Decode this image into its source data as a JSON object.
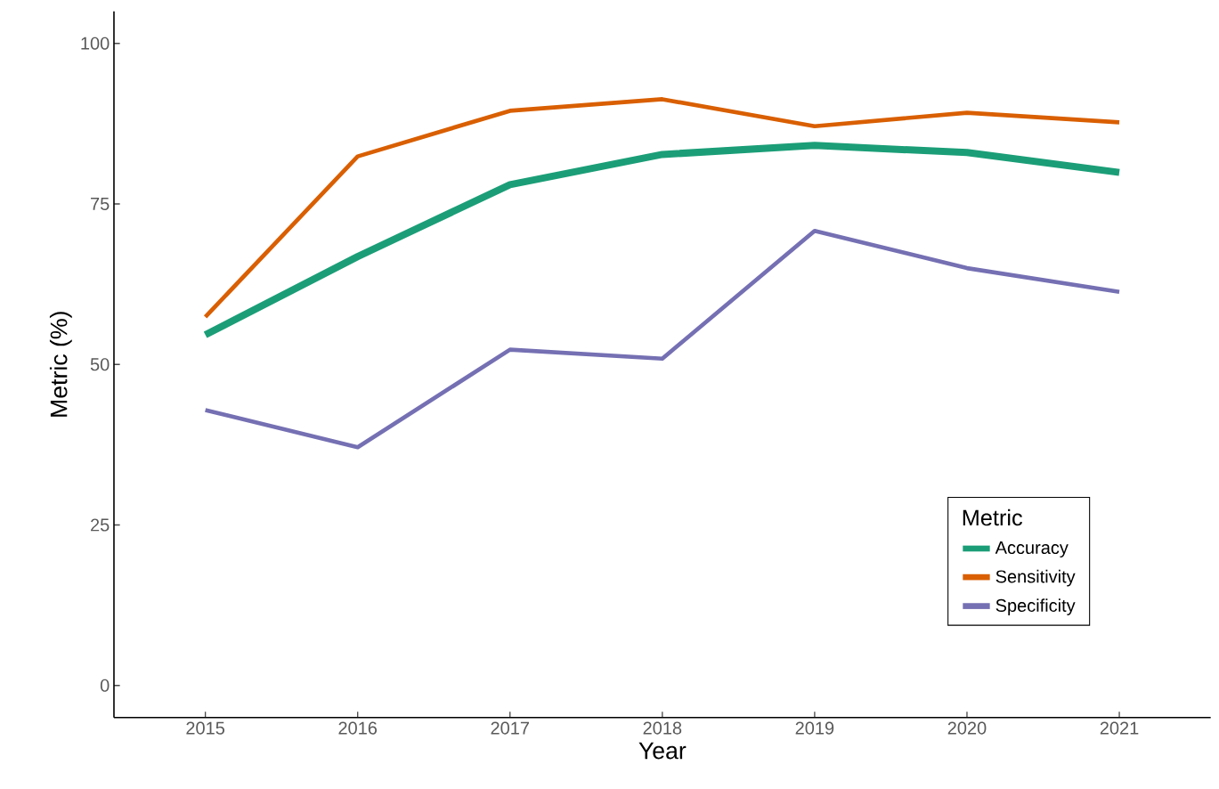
{
  "chart_data": {
    "type": "line",
    "xlabel": "Year",
    "ylabel": "Metric (%)",
    "legend_title": "Metric",
    "x": [
      2015,
      2016,
      2017,
      2018,
      2019,
      2020,
      2021
    ],
    "series": [
      {
        "name": "Accuracy",
        "color": "#1b9e77",
        "values": [
          54.6,
          66.8,
          78.0,
          82.7,
          84.1,
          83.0,
          79.9
        ]
      },
      {
        "name": "Sensitivity",
        "color": "#d95f02",
        "values": [
          57.4,
          82.4,
          89.5,
          91.3,
          87.1,
          89.2,
          87.7
        ]
      },
      {
        "name": "Specificity",
        "color": "#7570b3",
        "values": [
          42.9,
          37.1,
          52.3,
          50.9,
          70.8,
          65.0,
          61.3
        ]
      }
    ],
    "xlim": [
      2014.4,
      2021.6
    ],
    "ylim": [
      -5,
      105
    ],
    "xticks": [
      2015,
      2016,
      2017,
      2018,
      2019,
      2020,
      2021
    ],
    "yticks": [
      0,
      25,
      50,
      75,
      100
    ],
    "grid": false,
    "legend": "bottom right",
    "marker": "none",
    "line_style": "solid"
  }
}
